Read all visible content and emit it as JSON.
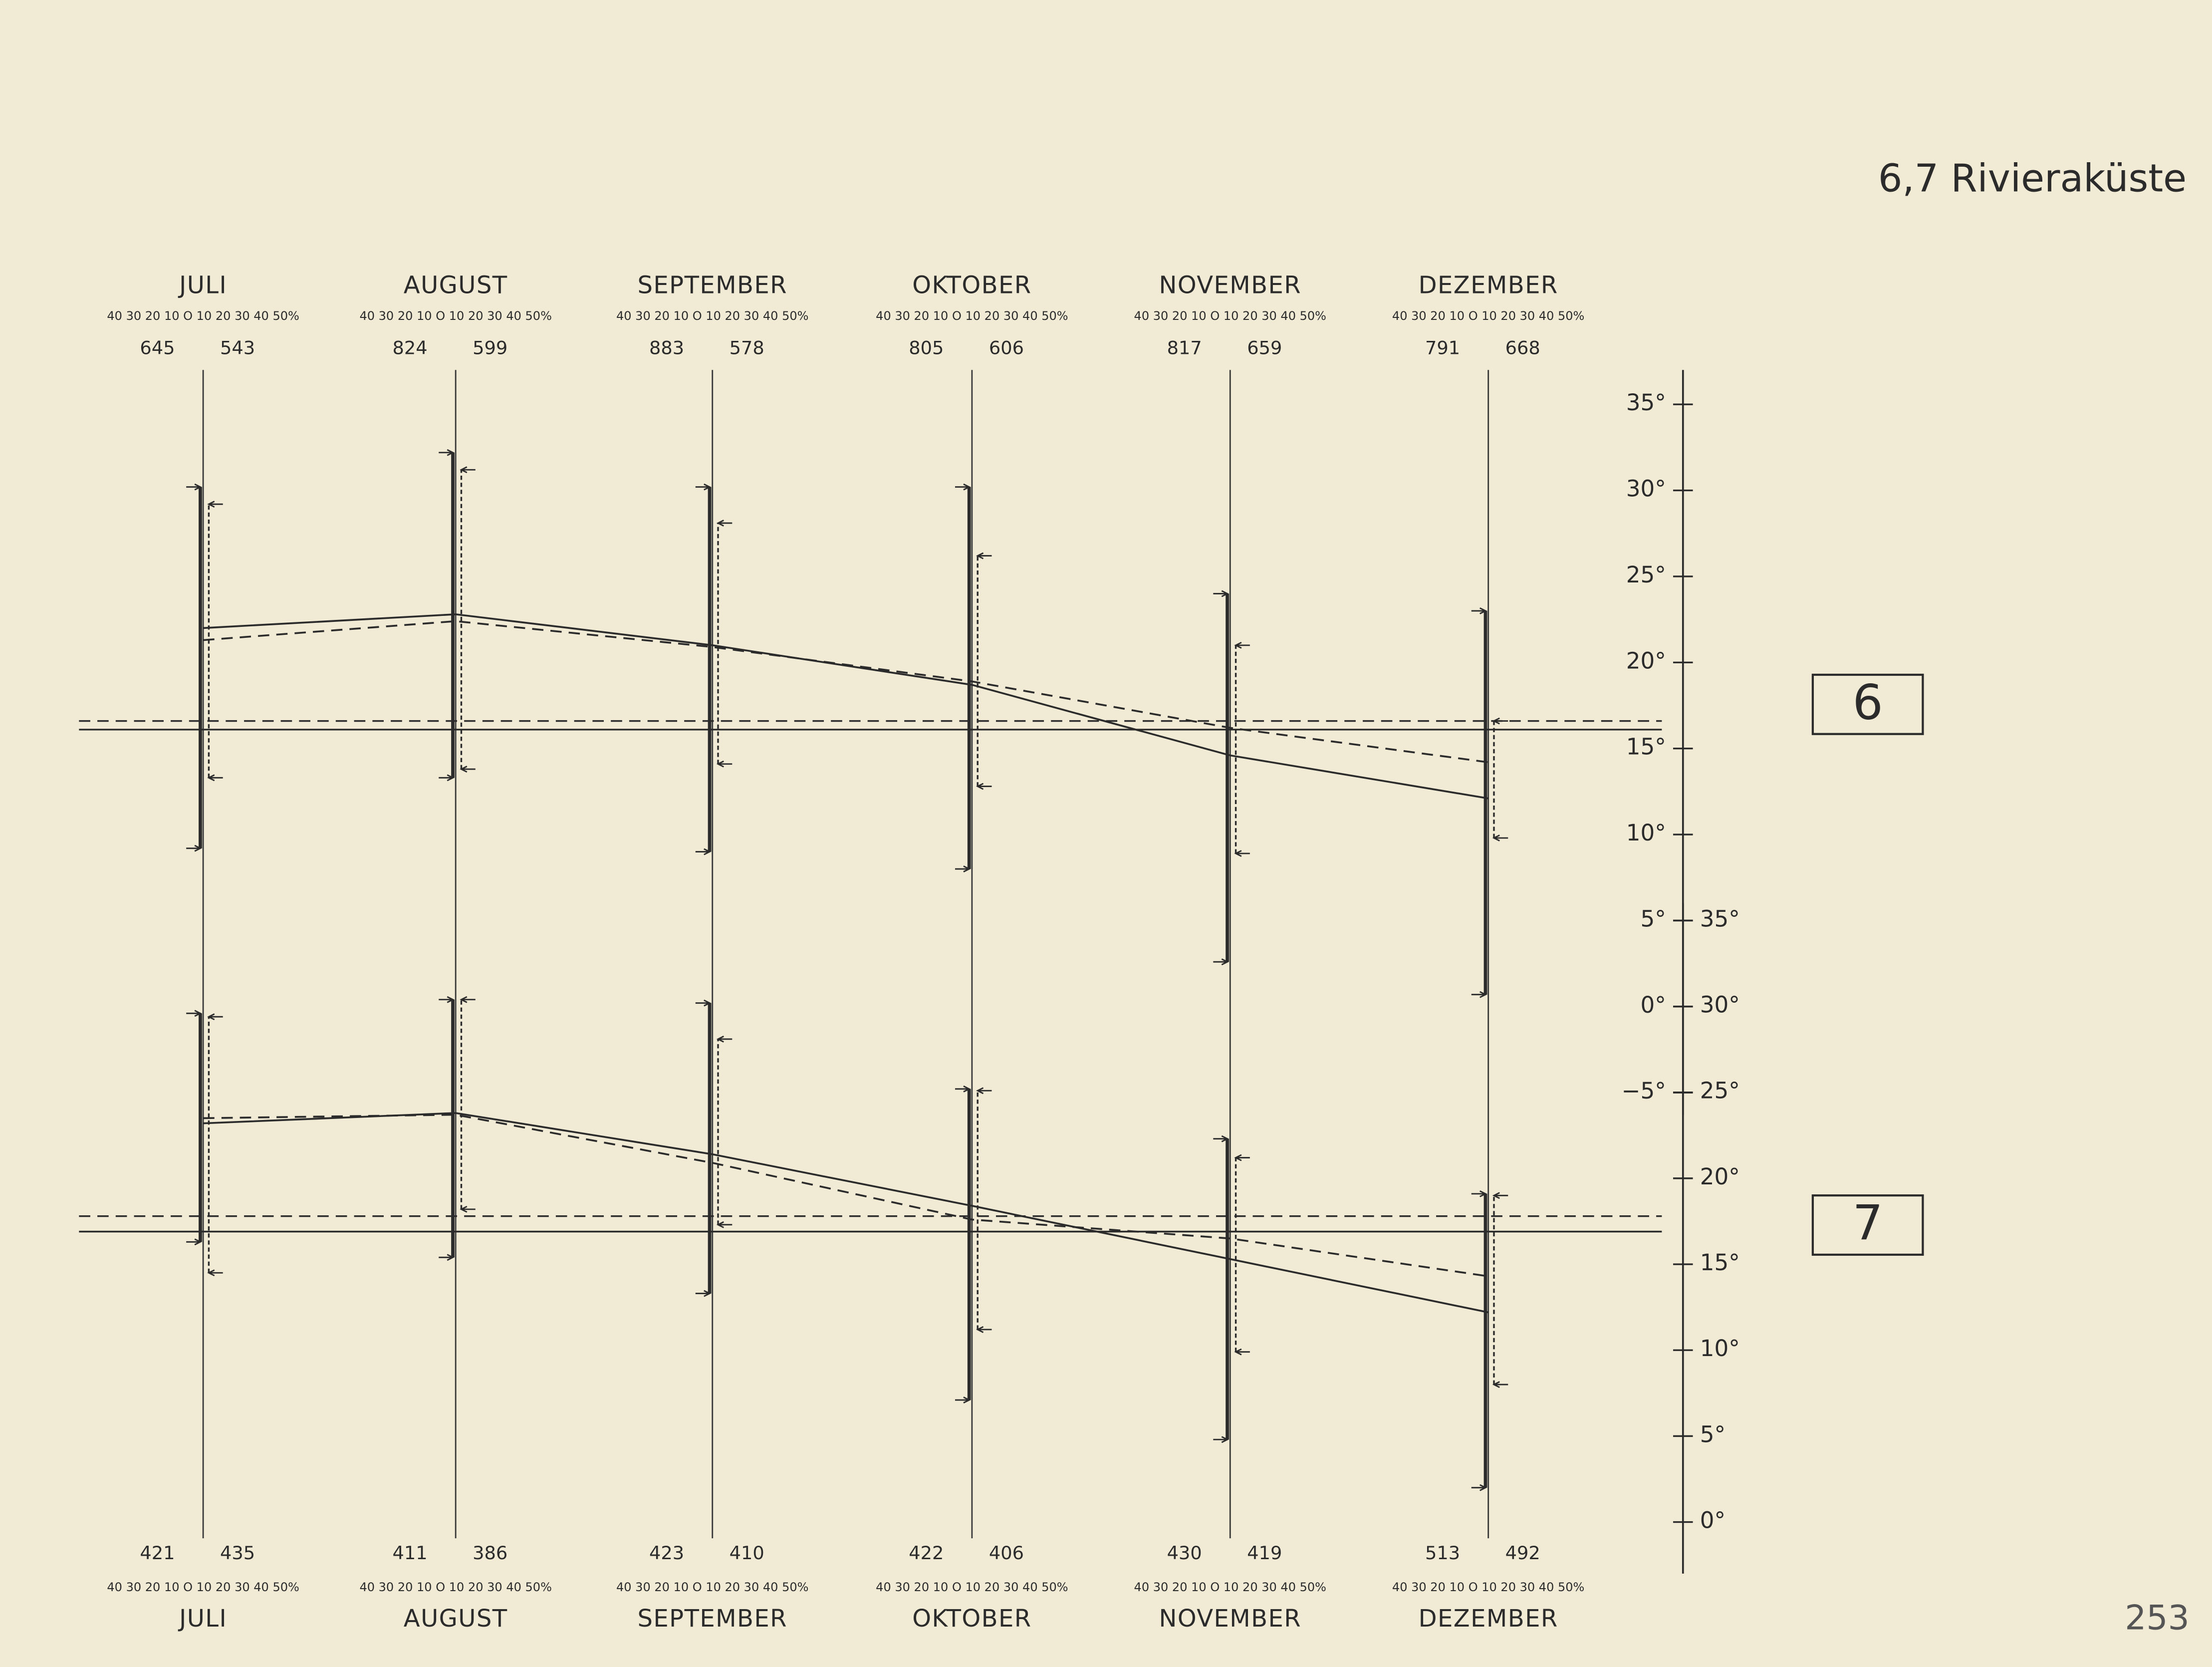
{
  "header": {
    "title": "6,7 Rivieraküste",
    "page_number": "253"
  },
  "chart_data": [
    {
      "type": "line",
      "label": "6",
      "categories": [
        "JULI",
        "AUGUST",
        "SEPTEMBER",
        "OKTOBER",
        "NOVEMBER",
        "DEZEMBER"
      ],
      "scale_label": "40 30 20 10 O 10 20 30 40 50%",
      "counts": [
        [
          645,
          543
        ],
        [
          824,
          599
        ],
        [
          883,
          578
        ],
        [
          805,
          606
        ],
        [
          817,
          659
        ],
        [
          791,
          668
        ]
      ],
      "ylim": [
        -6.3,
        37
      ],
      "yticks": [
        {
          "value": 35,
          "label": "35°"
        },
        {
          "value": 30,
          "label": "30°"
        },
        {
          "value": 25,
          "label": "25°"
        },
        {
          "value": 20,
          "label": "20°"
        },
        {
          "value": 15,
          "label": "15°"
        },
        {
          "value": 10,
          "label": "10°"
        },
        {
          "value": 5,
          "label": "5°"
        },
        {
          "value": 0,
          "label": "0°"
        },
        {
          "value": -5,
          "label": "−5°"
        }
      ],
      "series": [
        {
          "color": "#2b2b2b",
          "line_style": "solid",
          "values": [
            22.0,
            22.8,
            21.0,
            18.7,
            14.6,
            12.1
          ],
          "annual_mean": 16.1,
          "extremes": [
            [
              9.2,
              30.2
            ],
            [
              13.3,
              32.2
            ],
            [
              9.0,
              30.2
            ],
            [
              8.0,
              30.2
            ],
            [
              2.6,
              24.0
            ],
            [
              0.7,
              23.0
            ]
          ]
        },
        {
          "color": "#2b2b2b",
          "line_style": "dashed",
          "values": [
            21.3,
            22.4,
            20.9,
            18.9,
            16.2,
            14.2
          ],
          "annual_mean": 16.6,
          "extremes": [
            [
              13.3,
              29.2
            ],
            [
              13.8,
              31.2
            ],
            [
              14.1,
              28.1
            ],
            [
              12.8,
              26.2
            ],
            [
              8.9,
              21.0
            ],
            [
              9.8,
              16.6
            ]
          ]
        }
      ]
    },
    {
      "type": "line",
      "label": "7",
      "categories": [
        "JULI",
        "AUGUST",
        "SEPTEMBER",
        "OKTOBER",
        "NOVEMBER",
        "DEZEMBER"
      ],
      "scale_label": "40 30 20 10 O 10 20 30 40 50%",
      "counts": [
        [
          421,
          435
        ],
        [
          411,
          386
        ],
        [
          423,
          410
        ],
        [
          422,
          406
        ],
        [
          430,
          419
        ],
        [
          513,
          492
        ]
      ],
      "ylim": [
        -3,
        36
      ],
      "yticks": [
        {
          "value": 35,
          "label": "35°"
        },
        {
          "value": 30,
          "label": "30°"
        },
        {
          "value": 25,
          "label": "25°"
        },
        {
          "value": 20,
          "label": "20°"
        },
        {
          "value": 15,
          "label": "15°"
        },
        {
          "value": 10,
          "label": "10°"
        },
        {
          "value": 5,
          "label": "5°"
        },
        {
          "value": 0,
          "label": "0°"
        }
      ],
      "series": [
        {
          "color": "#2b2b2b",
          "line_style": "solid",
          "values": [
            23.2,
            23.8,
            21.4,
            18.4,
            15.3,
            12.2
          ],
          "annual_mean": 16.9,
          "extremes": [
            [
              16.3,
              29.6
            ],
            [
              15.4,
              30.4
            ],
            [
              13.3,
              30.2
            ],
            [
              7.1,
              25.2
            ],
            [
              4.8,
              22.3
            ],
            [
              2.0,
              19.1
            ]
          ]
        },
        {
          "color": "#2b2b2b",
          "line_style": "dashed",
          "values": [
            23.5,
            23.7,
            20.9,
            17.6,
            16.5,
            14.3
          ],
          "annual_mean": 17.8,
          "extremes": [
            [
              14.5,
              29.4
            ],
            [
              18.2,
              30.4
            ],
            [
              17.3,
              28.1
            ],
            [
              11.2,
              25.1
            ],
            [
              9.9,
              21.2
            ],
            [
              8.0,
              19.0
            ]
          ]
        }
      ]
    }
  ]
}
